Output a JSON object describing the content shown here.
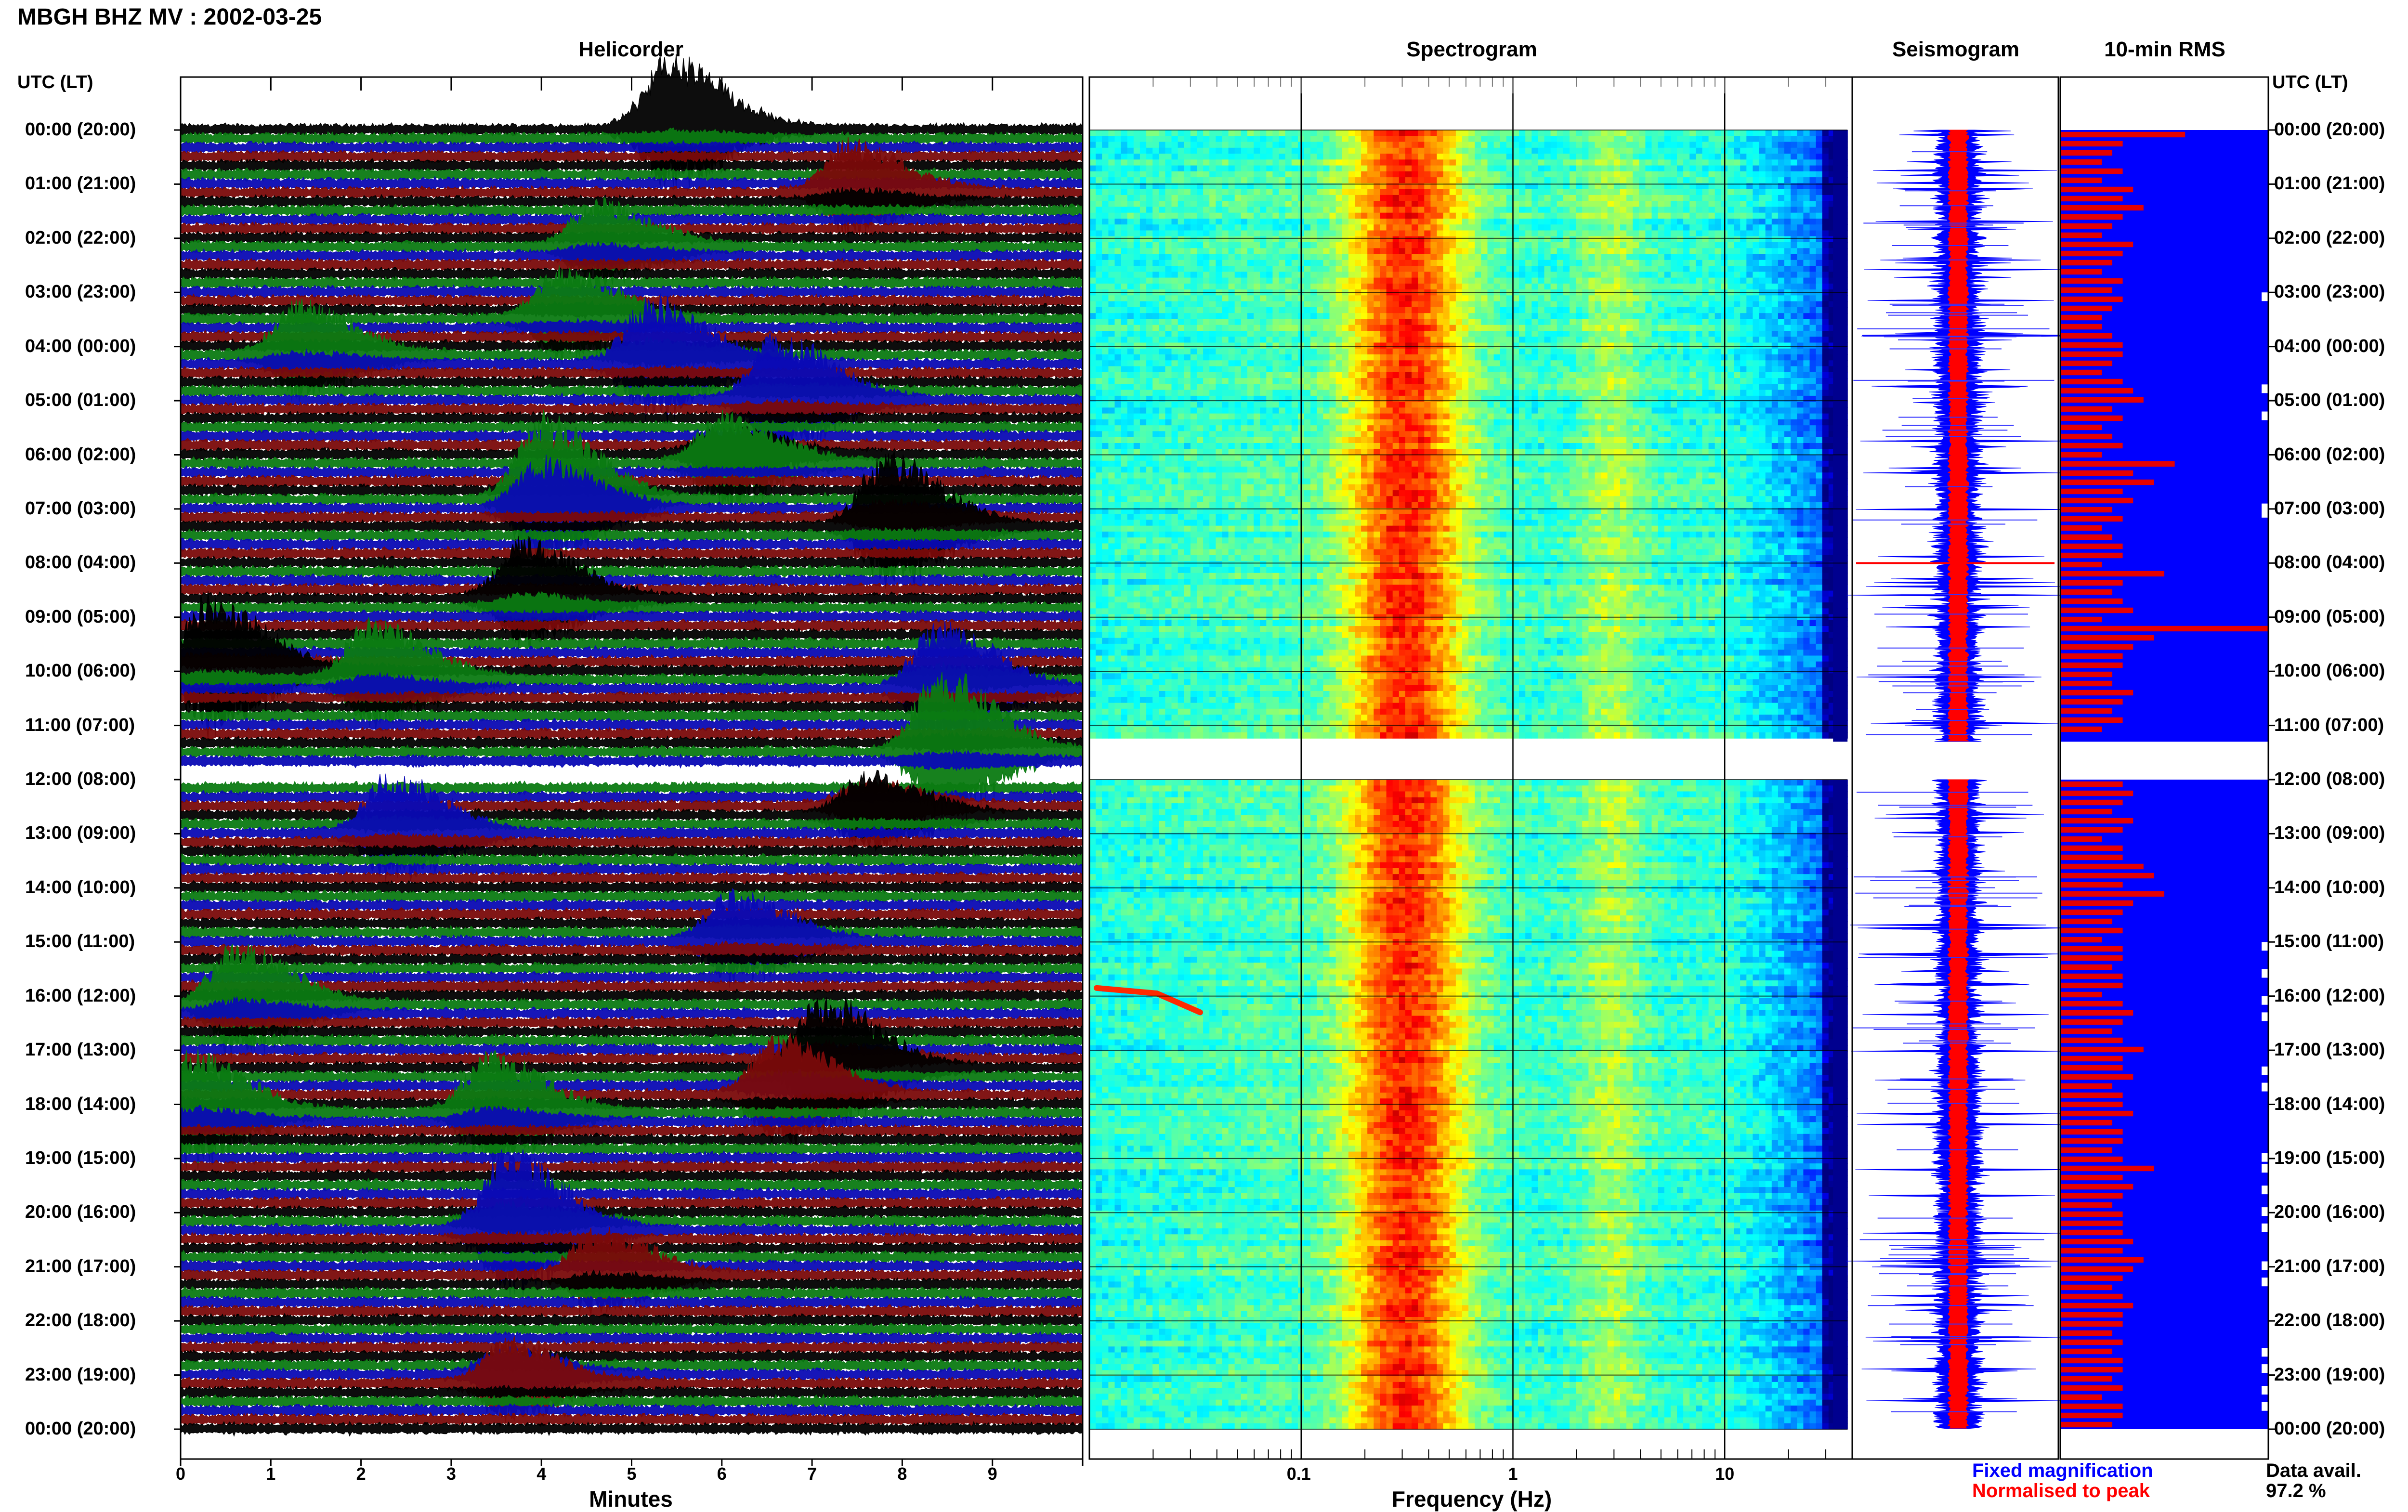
{
  "header": {
    "title": "MBGH BHZ MV : 2002-03-25"
  },
  "panels": {
    "helicorder": "Helicorder",
    "spectrogram": "Spectrogram",
    "seismogram": "Seismogram",
    "rms": "10-min RMS"
  },
  "axis": {
    "left_header": "UTC (LT)",
    "right_header": "UTC (LT)",
    "x_helicorder": "Minutes",
    "x_spectrogram": "Frequency (Hz)"
  },
  "time_labels": [
    "00:00 (20:00)",
    "01:00 (21:00)",
    "02:00 (22:00)",
    "03:00 (23:00)",
    "04:00 (00:00)",
    "05:00 (01:00)",
    "06:00 (02:00)",
    "07:00 (03:00)",
    "08:00 (04:00)",
    "09:00 (05:00)",
    "10:00 (06:00)",
    "11:00 (07:00)",
    "12:00 (08:00)",
    "13:00 (09:00)",
    "14:00 (10:00)",
    "15:00 (11:00)",
    "16:00 (12:00)",
    "17:00 (13:00)",
    "18:00 (14:00)",
    "19:00 (15:00)",
    "20:00 (16:00)",
    "21:00 (17:00)",
    "22:00 (18:00)",
    "23:00 (19:00)",
    "00:00 (20:00)"
  ],
  "legend": {
    "fixed": "Fixed magnification",
    "normalised": "Normalised to peak",
    "data_avail_label": "Data avail.",
    "data_avail_value": "97.2 %"
  },
  "colors": {
    "trace_black": "#000000",
    "trace_green": "#0b7a12",
    "trace_blue": "#0a0ab4",
    "trace_red": "#7a0a0a",
    "rms_bar": "#e60000",
    "rms_bg": "#0000ff",
    "fixed_text": "#0000ff",
    "normalised_text": "#ff0000"
  },
  "chart_data": [
    {
      "type": "line",
      "name": "helicorder",
      "title": "Helicorder",
      "xlabel": "Minutes",
      "xlim": [
        0,
        10
      ],
      "xticks": [
        0,
        1,
        2,
        3,
        4,
        5,
        6,
        7,
        8,
        9
      ],
      "rows_per_hour": 6,
      "series_colors": [
        "black",
        "green",
        "blue",
        "red"
      ],
      "data_gap_hours": [
        11.7,
        12.0
      ],
      "events": [
        {
          "hour": 0.0,
          "minute": 5.4,
          "amp": 0.9
        },
        {
          "hour": 1.2,
          "minute": 7.4,
          "amp": 0.7
        },
        {
          "hour": 2.2,
          "minute": 4.6,
          "amp": 0.6
        },
        {
          "hour": 3.5,
          "minute": 4.2,
          "amp": 0.6
        },
        {
          "hour": 4.2,
          "minute": 1.3,
          "amp": 0.7
        },
        {
          "hour": 4.3,
          "minute": 5.2,
          "amp": 0.9
        },
        {
          "hour": 5.0,
          "minute": 6.6,
          "amp": 0.8
        },
        {
          "hour": 6.1,
          "minute": 6.0,
          "amp": 0.9
        },
        {
          "hour": 6.9,
          "minute": 4.0,
          "amp": 1.6
        },
        {
          "hour": 7.3,
          "minute": 7.8,
          "amp": 1.0
        },
        {
          "hour": 8.7,
          "minute": 3.8,
          "amp": 0.8
        },
        {
          "hour": 10.0,
          "minute": 0.3,
          "amp": 0.9
        },
        {
          "hour": 10.2,
          "minute": 2.1,
          "amp": 0.8
        },
        {
          "hour": 10.3,
          "minute": 8.4,
          "amp": 0.9
        },
        {
          "hour": 11.5,
          "minute": 8.4,
          "amp": 1.0
        },
        {
          "hour": 12.6,
          "minute": 7.6,
          "amp": 0.8
        },
        {
          "hour": 13.0,
          "minute": 2.3,
          "amp": 0.7
        },
        {
          "hour": 15.0,
          "minute": 6.1,
          "amp": 0.6
        },
        {
          "hour": 16.2,
          "minute": 0.6,
          "amp": 0.8
        },
        {
          "hour": 17.3,
          "minute": 7.1,
          "amp": 1.0
        },
        {
          "hour": 17.8,
          "minute": 6.6,
          "amp": 0.8
        },
        {
          "hour": 18.2,
          "minute": 0.1,
          "amp": 0.8
        },
        {
          "hour": 18.2,
          "minute": 3.4,
          "amp": 0.8
        },
        {
          "hour": 20.3,
          "minute": 3.6,
          "amp": 1.1
        },
        {
          "hour": 21.2,
          "minute": 4.6,
          "amp": 0.6
        },
        {
          "hour": 23.1,
          "minute": 3.6,
          "amp": 0.8
        }
      ]
    },
    {
      "type": "heatmap",
      "name": "spectrogram",
      "title": "Spectrogram",
      "xlabel": "Frequency (Hz)",
      "xscale": "log",
      "xlim": [
        0.01,
        40
      ],
      "xtick_labels": [
        "0.1",
        "1",
        "10"
      ],
      "xticks": [
        0.1,
        1,
        10
      ],
      "peak_band_hz": [
        0.15,
        0.6
      ],
      "secondary_band_hz": [
        2.0,
        4.0
      ],
      "data_gap_hours": [
        11.3,
        12.0
      ],
      "colormap": "jet"
    },
    {
      "type": "line",
      "name": "seismogram",
      "title": "Seismogram",
      "data_gap_hours": [
        11.3,
        12.0
      ],
      "series": [
        {
          "name": "Fixed magnification",
          "color": "blue"
        },
        {
          "name": "Normalised to peak",
          "color": "red"
        }
      ]
    },
    {
      "type": "bar",
      "name": "10-min RMS",
      "title": "10-min RMS",
      "orientation": "horizontal",
      "interval_minutes": 10,
      "data_gap_hours": [
        11.3,
        12.0
      ],
      "values": [
        0.6,
        0.3,
        0.25,
        0.2,
        0.3,
        0.2,
        0.35,
        0.3,
        0.4,
        0.3,
        0.25,
        0.2,
        0.35,
        0.3,
        0.25,
        0.2,
        0.3,
        0.25,
        0.3,
        0.25,
        0.2,
        0.2,
        0.25,
        0.3,
        0.3,
        0.25,
        0.2,
        0.3,
        0.35,
        0.4,
        0.25,
        0.3,
        0.2,
        0.25,
        0.3,
        0.2,
        0.55,
        0.35,
        0.45,
        0.3,
        0.35,
        0.25,
        0.3,
        0.2,
        0.25,
        0.3,
        0.3,
        0.2,
        0.5,
        0.3,
        0.25,
        0.3,
        0.35,
        0.2,
        1.0,
        0.45,
        0.35,
        0.3,
        0.3,
        0.25,
        0.25,
        0.35,
        0.3,
        0.25,
        0.3,
        0.2,
        0.3,
        0.5,
        0.25,
        0.55,
        0.4,
        0.3,
        0.35,
        0.3,
        0.25,
        0.35,
        0.3,
        0.2,
        0.3,
        0.3,
        0.4,
        0.45,
        0.3,
        0.5,
        0.35,
        0.3,
        0.25,
        0.3,
        0.2,
        0.3,
        0.3,
        0.25,
        0.3,
        0.3,
        0.2,
        0.3,
        0.35,
        0.3,
        0.25,
        0.3,
        0.4,
        0.3,
        0.3,
        0.35,
        0.25,
        0.3,
        0.3,
        0.35,
        0.25,
        0.3,
        0.3,
        0.25,
        0.3,
        0.45,
        0.3,
        0.35,
        0.3,
        0.25,
        0.3,
        0.3,
        0.3,
        0.35,
        0.3,
        0.4,
        0.35,
        0.3,
        0.25,
        0.3,
        0.35,
        0.3,
        0.3,
        0.25,
        0.3,
        0.25,
        0.3,
        0.3,
        0.25,
        0.3,
        0.2,
        0.3,
        0.3,
        0.25
      ]
    }
  ]
}
